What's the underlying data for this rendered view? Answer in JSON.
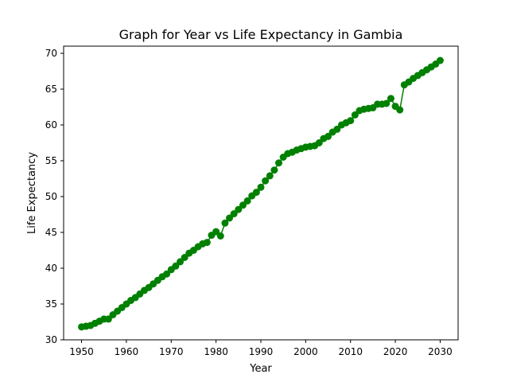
{
  "chart_data": {
    "type": "line",
    "title": "Graph for Year vs Life Expectancy in Gambia",
    "xlabel": "Year",
    "ylabel": "Life Expectancy",
    "xlim": [
      1946,
      2034
    ],
    "ylim": [
      30,
      71
    ],
    "xticks": [
      1950,
      1960,
      1970,
      1980,
      1990,
      2000,
      2010,
      2020,
      2030
    ],
    "yticks": [
      30,
      35,
      40,
      45,
      50,
      55,
      60,
      65,
      70
    ],
    "grid": false,
    "color": "#008000",
    "markers": true,
    "series": [
      {
        "x": [
          1950,
          1951,
          1952,
          1953,
          1954,
          1955,
          1956,
          1957,
          1958,
          1959,
          1960,
          1961,
          1962,
          1963,
          1964,
          1965,
          1966,
          1967,
          1968,
          1969,
          1970,
          1971,
          1972,
          1973,
          1974,
          1975,
          1976,
          1977,
          1978,
          1979,
          1980,
          1981,
          1982,
          1983,
          1984,
          1985,
          1986,
          1987,
          1988,
          1989,
          1990,
          1991,
          1992,
          1993,
          1994,
          1995,
          1996,
          1997,
          1998,
          1999,
          2000,
          2001,
          2002,
          2003,
          2004,
          2005,
          2006,
          2007,
          2008,
          2009,
          2010,
          2011,
          2012,
          2013,
          2014,
          2015,
          2016,
          2017,
          2018,
          2019,
          2020,
          2021,
          2022,
          2023,
          2024,
          2025,
          2026,
          2027,
          2028,
          2029,
          2030
        ],
        "y": [
          31.8,
          31.9,
          32.0,
          32.3,
          32.6,
          32.9,
          32.9,
          33.5,
          34.0,
          34.5,
          35.0,
          35.5,
          35.9,
          36.4,
          36.9,
          37.3,
          37.8,
          38.3,
          38.8,
          39.2,
          39.8,
          40.3,
          40.9,
          41.5,
          42.1,
          42.5,
          43.0,
          43.4,
          43.6,
          44.6,
          45.1,
          44.5,
          46.3,
          47.0,
          47.6,
          48.2,
          48.8,
          49.4,
          50.1,
          50.6,
          51.3,
          52.2,
          52.9,
          53.7,
          54.7,
          55.5,
          56.0,
          56.2,
          56.5,
          56.7,
          56.9,
          57.0,
          57.1,
          57.5,
          58.1,
          58.4,
          59.0,
          59.4,
          60.0,
          60.3,
          60.6,
          61.4,
          62.0,
          62.2,
          62.3,
          62.4,
          62.9,
          62.9,
          63.0,
          63.7,
          62.6,
          62.1,
          65.6,
          66.0,
          66.5,
          66.9,
          67.3,
          67.7,
          68.1,
          68.5,
          69.0
        ]
      }
    ]
  }
}
